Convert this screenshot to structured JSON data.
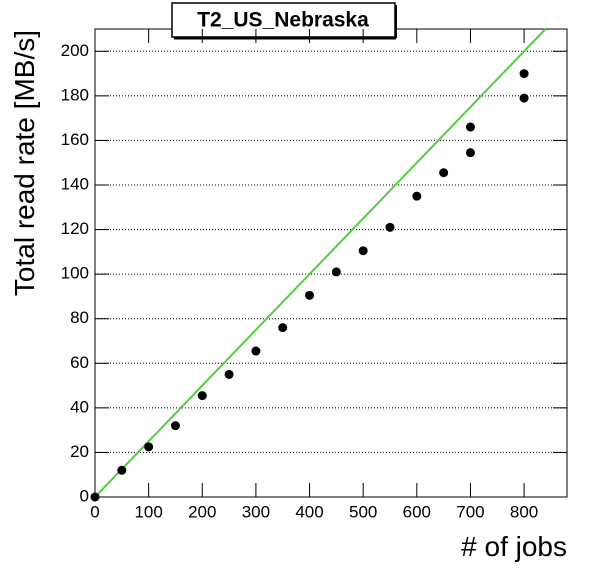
{
  "chart_data": {
    "type": "scatter",
    "title": "T2_US_Nebraska",
    "x_label": "# of jobs",
    "y_label": "Total read rate [MB/s]",
    "x": [
      0,
      50,
      100,
      150,
      200,
      250,
      300,
      350,
      400,
      450,
      500,
      550,
      600,
      650,
      700,
      700,
      800,
      800
    ],
    "values": [
      0,
      12,
      22.5,
      32,
      45.5,
      55,
      65.5,
      76,
      90.5,
      101,
      110.5,
      121,
      135,
      145.5,
      154.5,
      166,
      179,
      190
    ],
    "color": "#000000",
    "line": {
      "x": [
        0,
        840
      ],
      "values": [
        0,
        210
      ],
      "color": "#55cc44"
    },
    "xlim": [
      0,
      880
    ],
    "xticks": [
      0,
      100,
      200,
      300,
      400,
      500,
      600,
      700,
      800
    ],
    "ylim": [
      0,
      210
    ],
    "yticks": [
      0,
      20,
      40,
      60,
      80,
      100,
      120,
      140,
      160,
      180,
      200
    ],
    "grid": "y"
  }
}
